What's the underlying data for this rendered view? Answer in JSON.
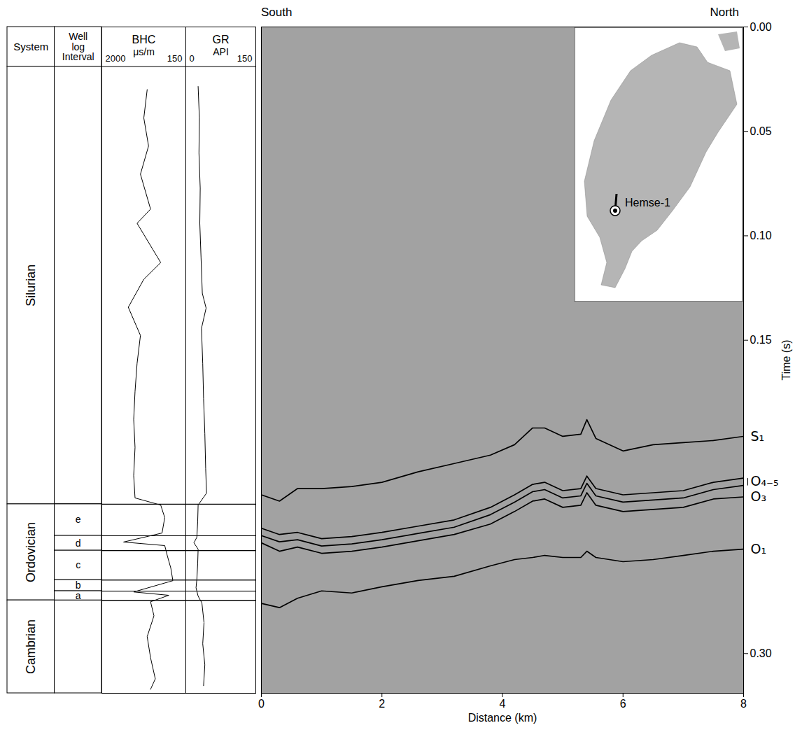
{
  "chart_data": [
    {
      "type": "line",
      "direction_labels": {
        "left": "South",
        "right": "North"
      },
      "xlabel": "Distance (km)",
      "ylabel": "Time (s)",
      "xlim": [
        0,
        8
      ],
      "ylim": [
        0,
        0.319
      ],
      "xticks": [
        0,
        2,
        4,
        6,
        8
      ],
      "yticks": [
        {
          "value": 0,
          "label": "0.00"
        },
        {
          "value": 0.05,
          "label": "0.05"
        },
        {
          "value": 0.1,
          "label": "0.10"
        },
        {
          "value": 0.15,
          "label": "0.15"
        },
        {
          "value": 0.3,
          "label": "0.30"
        }
      ],
      "x": [
        0,
        0.3,
        0.6,
        1,
        1.5,
        2,
        2.6,
        3.2,
        3.8,
        4.2,
        4.5,
        4.7,
        5,
        5.3,
        5.4,
        5.55,
        6,
        6.5,
        7,
        7.5,
        8
      ],
      "series": [
        {
          "name": "S₁",
          "color": "#000000",
          "values": [
            0.224,
            0.227,
            0.221,
            0.221,
            0.22,
            0.218,
            0.213,
            0.209,
            0.205,
            0.2,
            0.192,
            0.192,
            0.196,
            0.195,
            0.188,
            0.197,
            0.203,
            0.2,
            0.199,
            0.198,
            0.196
          ]
        },
        {
          "name": "O₄₋₅",
          "color": "#000000",
          "values": [
            0.24,
            0.243,
            0.242,
            0.245,
            0.244,
            0.242,
            0.239,
            0.236,
            0.23,
            0.224,
            0.219,
            0.218,
            0.222,
            0.221,
            0.215,
            0.221,
            0.224,
            0.223,
            0.222,
            0.218,
            0.216
          ],
          "base_values": [
            0.2435,
            0.2465,
            0.2455,
            0.2485,
            0.2475,
            0.2455,
            0.2425,
            0.2395,
            0.2335,
            0.2275,
            0.2225,
            0.2215,
            0.2255,
            0.2245,
            0.2185,
            0.2245,
            0.2275,
            0.2265,
            0.2255,
            0.2215,
            0.2195
          ]
        },
        {
          "name": "O₃",
          "color": "#000000",
          "values": [
            0.247,
            0.251,
            0.249,
            0.252,
            0.251,
            0.249,
            0.246,
            0.243,
            0.238,
            0.232,
            0.227,
            0.226,
            0.23,
            0.229,
            0.223,
            0.229,
            0.232,
            0.231,
            0.23,
            0.226,
            0.225
          ]
        },
        {
          "name": "O₁",
          "color": "#000000",
          "values": [
            0.276,
            0.278,
            0.2735,
            0.27,
            0.271,
            0.268,
            0.265,
            0.263,
            0.258,
            0.255,
            0.254,
            0.253,
            0.254,
            0.254,
            0.251,
            0.254,
            0.256,
            0.255,
            0.253,
            0.251,
            0.25
          ]
        }
      ],
      "inset": {
        "type": "map",
        "label": "Hemse-1"
      }
    },
    {
      "type": "well_log",
      "ylim": [
        0,
        0.319
      ],
      "column_heads": {
        "system": "System",
        "interval": "Well log Interval"
      },
      "systems": [
        {
          "name": "Silurian",
          "top": 0.019,
          "base": 0.2285
        },
        {
          "name": "Ordovician",
          "top": 0.2285,
          "base": 0.2745
        },
        {
          "name": "Cambrian",
          "top": 0.2745,
          "base": 0.319
        }
      ],
      "intervals": [
        {
          "name": "e",
          "top": 0.2285,
          "base": 0.2436
        },
        {
          "name": "d",
          "top": 0.2436,
          "base": 0.2507
        },
        {
          "name": "c",
          "top": 0.2507,
          "base": 0.2648
        },
        {
          "name": "b",
          "top": 0.2648,
          "base": 0.2701
        },
        {
          "name": "a",
          "top": 0.2701,
          "base": 0.2745
        }
      ],
      "tracks": [
        {
          "name": "BHC",
          "unit": "μs/m",
          "xlim": [
            2000,
            150
          ],
          "xticks": [
            2000,
            150
          ],
          "color": "#000000",
          "time": [
            0.03,
            0.0436,
            0.057,
            0.0705,
            0.0872,
            0.094,
            0.1128,
            0.1208,
            0.1342,
            0.1477,
            0.1611,
            0.1745,
            0.1879,
            0.2013,
            0.2148,
            0.2255,
            0.2289,
            0.2349,
            0.2423,
            0.2466,
            0.2483,
            0.2534,
            0.2591,
            0.2651,
            0.2705,
            0.2721,
            0.2752,
            0.2819,
            0.2919,
            0.302,
            0.3121,
            0.3171
          ],
          "values": [
            994,
            1075,
            961,
            1156,
            913,
            1237,
            669,
            1075,
            1448,
            1156,
            1237,
            1286,
            1318,
            1286,
            1318,
            1286,
            669,
            572,
            637,
            1562,
            572,
            507,
            426,
            377,
            1318,
            474,
            913,
            831,
            994,
            913,
            799,
            913
          ]
        },
        {
          "name": "GR",
          "unit": "API",
          "xlim": [
            0,
            150
          ],
          "xticks": [
            0,
            150
          ],
          "color": "#000000",
          "time": [
            0.0285,
            0.0436,
            0.0604,
            0.0772,
            0.094,
            0.1107,
            0.1275,
            0.1346,
            0.1443,
            0.1611,
            0.1779,
            0.1946,
            0.2114,
            0.2232,
            0.2289,
            0.2366,
            0.2443,
            0.247,
            0.25,
            0.2567,
            0.2644,
            0.2685,
            0.2725,
            0.2758,
            0.2852,
            0.2953,
            0.3054,
            0.3154
          ],
          "values": [
            21,
            24,
            23,
            26,
            25,
            28,
            31,
            40,
            29,
            32,
            34,
            37,
            39,
            41,
            21,
            20,
            18,
            11,
            21,
            20,
            18,
            16,
            21,
            30,
            35,
            32,
            37,
            34
          ]
        }
      ]
    }
  ]
}
